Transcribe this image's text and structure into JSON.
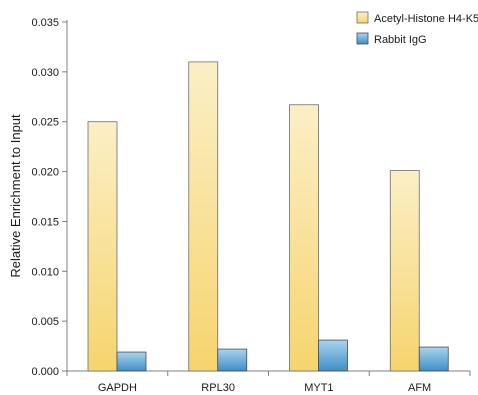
{
  "chart_data": {
    "type": "bar",
    "title": "",
    "xlabel": "",
    "ylabel": "Relative Enrichment to Input",
    "categories": [
      "GAPDH",
      "RPL30",
      "MYT1",
      "AFM"
    ],
    "series": [
      {
        "name": "Acetyl-Histone H4-K5",
        "values": [
          0.025,
          0.031,
          0.0267,
          0.0201
        ],
        "color_top": "#fbefc6",
        "color_bottom": "#f6d46e",
        "stroke": "#6d6d6d"
      },
      {
        "name": "Rabbit IgG",
        "values": [
          0.0019,
          0.0022,
          0.0031,
          0.0024
        ],
        "color_top": "#a9d3ee",
        "color_bottom": "#3f8fc7",
        "stroke": "#4a4a4a"
      }
    ],
    "ylim": [
      0,
      0.035
    ],
    "yticks": [
      "0.000",
      "0.005",
      "0.010",
      "0.015",
      "0.020",
      "0.025",
      "0.030",
      "0.035"
    ],
    "grid": false,
    "legend_position": "top-right"
  }
}
